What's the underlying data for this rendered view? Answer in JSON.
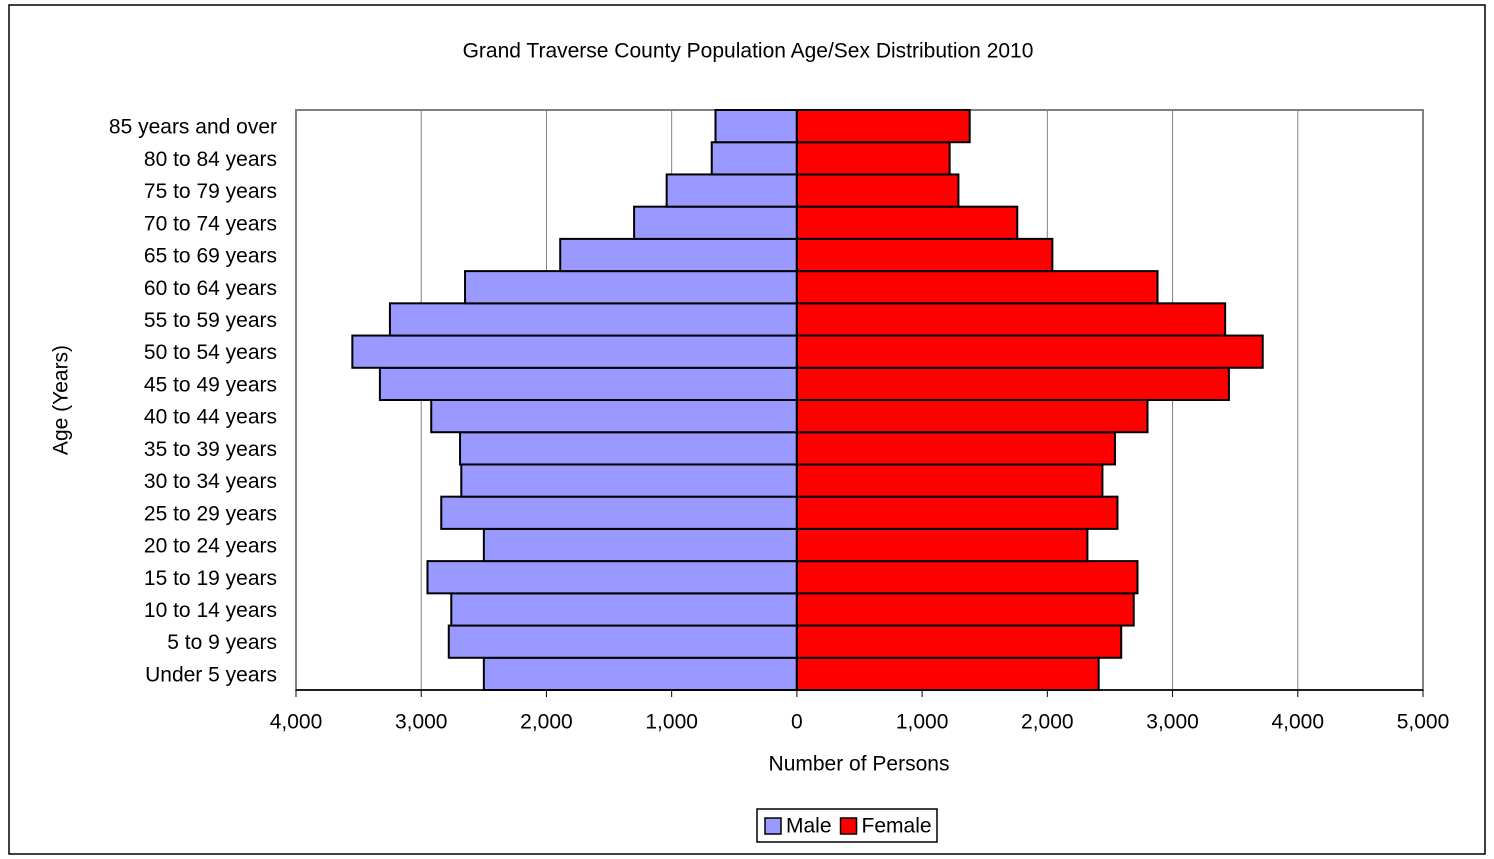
{
  "chart_data": {
    "type": "bar",
    "orientation": "horizontal",
    "layout": "pyramid",
    "title": "Grand Traverse County Population Age/Sex Distribution 2010",
    "x_label": "Number of Persons",
    "y_label": "Age (Years)",
    "categories": [
      "Under 5 years",
      "5 to 9 years",
      "10 to 14 years",
      "15 to 19 years",
      "20 to 24 years",
      "25 to 29 years",
      "30 to 34 years",
      "35 to 39 years",
      "40 to 44 years",
      "45 to 49 years",
      "50 to 54 years",
      "55 to 59 years",
      "60 to 64 years",
      "65 to 69 years",
      "70 to 74 years",
      "75 to 79 years",
      "80 to 84 years",
      "85 years and over"
    ],
    "series": [
      {
        "name": "Male",
        "color": "#9999ff",
        "values": [
          -2500,
          -2780,
          -2760,
          -2950,
          -2500,
          -2840,
          -2680,
          -2690,
          -2920,
          -3330,
          -3550,
          -3250,
          -2650,
          -1890,
          -1300,
          -1040,
          -680,
          -650
        ]
      },
      {
        "name": "Female",
        "color": "#ff0000",
        "values": [
          2410,
          2590,
          2690,
          2720,
          2320,
          2560,
          2440,
          2540,
          2800,
          3450,
          3720,
          3420,
          2880,
          2040,
          1760,
          1290,
          1220,
          1380
        ]
      }
    ],
    "xlim": [
      -4000,
      5000
    ],
    "xticks": [
      {
        "value": -4000,
        "label": "4,000"
      },
      {
        "value": -3000,
        "label": "3,000"
      },
      {
        "value": -2000,
        "label": "2,000"
      },
      {
        "value": -1000,
        "label": "1,000"
      },
      0,
      {
        "value": 1000,
        "label": "1,000"
      },
      {
        "value": 2000,
        "label": "2,000"
      },
      {
        "value": 3000,
        "label": "3,000"
      },
      {
        "value": 4000,
        "label": "4,000"
      },
      {
        "value": 5000,
        "label": "5,000"
      }
    ],
    "negative_tick_color": "#ff0000",
    "grid": true,
    "legend": "bottom"
  }
}
